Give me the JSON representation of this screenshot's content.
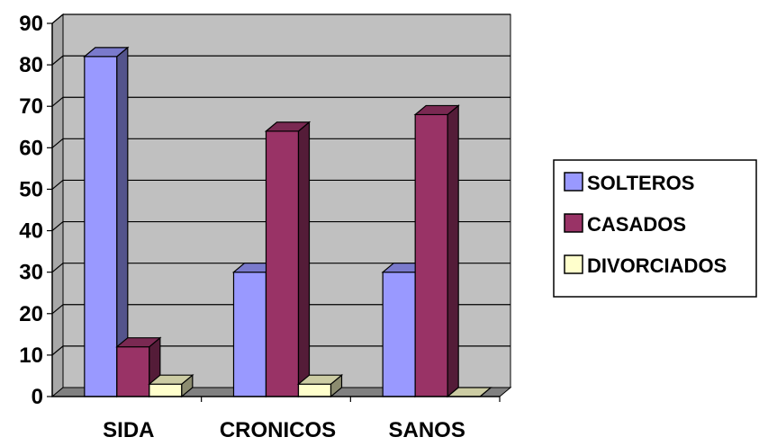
{
  "chart_data": {
    "type": "bar",
    "style": "3d-clustered-column",
    "categories": [
      "SIDA",
      "CRONICOS",
      "SANOS"
    ],
    "series": [
      {
        "name": "SOLTEROS",
        "values": [
          82,
          30,
          30
        ],
        "color": "#9999ff"
      },
      {
        "name": "CASADOS",
        "values": [
          12,
          64,
          68
        ],
        "color": "#993366"
      },
      {
        "name": "DIVORCIADOS",
        "values": [
          3,
          3,
          0
        ],
        "color": "#ffffcc"
      }
    ],
    "title": "",
    "xlabel": "",
    "ylabel": "",
    "ylim": [
      0,
      90
    ],
    "yticks": [
      0,
      10,
      20,
      30,
      40,
      50,
      60,
      70,
      80,
      90
    ],
    "grid": true,
    "plot_background": "#c0c0c0",
    "legend_position": "right"
  }
}
